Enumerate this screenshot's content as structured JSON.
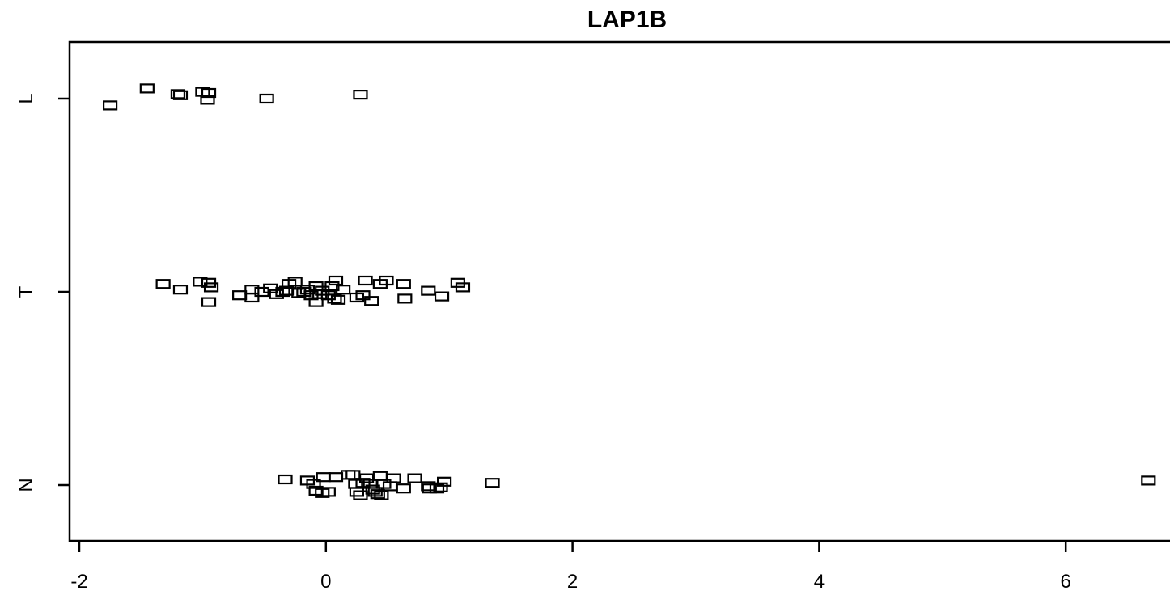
{
  "chart_data": {
    "type": "scatter",
    "title": "LAP1B",
    "xlabel": "",
    "ylabel": "",
    "xlim": [
      -2,
      6.8
    ],
    "x_ticks": [
      "-2",
      "0",
      "2",
      "4",
      "6"
    ],
    "x_tick_values": [
      -2,
      0,
      2,
      4,
      6
    ],
    "categories": [
      "L",
      "T",
      "N"
    ],
    "marker": "open-square",
    "grid": false,
    "legend": "none",
    "series": [
      {
        "category": "L",
        "points": [
          [
            -1.75,
            -0.06
          ],
          [
            -1.45,
            0.09
          ],
          [
            -1.2,
            0.04
          ],
          [
            -1.18,
            0.03
          ],
          [
            -1.0,
            0.06
          ],
          [
            -0.95,
            0.05
          ],
          [
            -0.96,
            -0.01
          ],
          [
            -0.48,
            0.0
          ],
          [
            0.28,
            0.035
          ]
        ]
      },
      {
        "category": "T",
        "points": [
          [
            -1.32,
            0.07
          ],
          [
            -1.18,
            0.02
          ],
          [
            -1.02,
            0.09
          ],
          [
            -0.95,
            0.08
          ],
          [
            -0.93,
            0.04
          ],
          [
            -0.95,
            -0.09
          ],
          [
            -0.7,
            -0.03
          ],
          [
            -0.6,
            0.02
          ],
          [
            -0.6,
            -0.05
          ],
          [
            -0.52,
            0.0
          ],
          [
            -0.45,
            0.03
          ],
          [
            -0.4,
            -0.02
          ],
          [
            -0.35,
            0.0
          ],
          [
            -0.32,
            0.01
          ],
          [
            -0.3,
            0.07
          ],
          [
            -0.25,
            0.09
          ],
          [
            -0.22,
            -0.01
          ],
          [
            -0.18,
            0.0
          ],
          [
            -0.15,
            0.02
          ],
          [
            -0.12,
            -0.03
          ],
          [
            -0.08,
            0.05
          ],
          [
            -0.05,
            -0.02
          ],
          [
            -0.03,
            0.01
          ],
          [
            -0.08,
            -0.09
          ],
          [
            0.02,
            -0.03
          ],
          [
            0.05,
            0.05
          ],
          [
            0.07,
            -0.06
          ],
          [
            0.1,
            -0.07
          ],
          [
            0.14,
            0.02
          ],
          [
            0.08,
            0.1
          ],
          [
            0.25,
            -0.05
          ],
          [
            0.3,
            -0.03
          ],
          [
            0.32,
            0.1
          ],
          [
            0.37,
            -0.08
          ],
          [
            0.44,
            0.07
          ],
          [
            0.49,
            0.1
          ],
          [
            0.63,
            0.07
          ],
          [
            0.64,
            -0.06
          ],
          [
            0.83,
            0.01
          ],
          [
            0.94,
            -0.04
          ],
          [
            1.07,
            0.08
          ],
          [
            1.11,
            0.04
          ]
        ]
      },
      {
        "category": "N",
        "points": [
          [
            -0.33,
            0.05
          ],
          [
            -0.15,
            0.04
          ],
          [
            -0.1,
            0.01
          ],
          [
            -0.08,
            -0.05
          ],
          [
            -0.02,
            0.07
          ],
          [
            -0.03,
            -0.07
          ],
          [
            0.02,
            -0.06
          ],
          [
            0.08,
            0.07
          ],
          [
            0.18,
            0.09
          ],
          [
            0.22,
            0.09
          ],
          [
            0.24,
            0.01
          ],
          [
            0.25,
            -0.06
          ],
          [
            0.28,
            -0.09
          ],
          [
            0.3,
            0.02
          ],
          [
            0.33,
            0.06
          ],
          [
            0.36,
            0.01
          ],
          [
            0.38,
            -0.04
          ],
          [
            0.4,
            -0.06
          ],
          [
            0.42,
            -0.08
          ],
          [
            0.45,
            -0.09
          ],
          [
            0.44,
            0.08
          ],
          [
            0.47,
            0.01
          ],
          [
            0.52,
            -0.01
          ],
          [
            0.55,
            0.06
          ],
          [
            0.63,
            -0.03
          ],
          [
            0.72,
            0.06
          ],
          [
            0.83,
            -0.01
          ],
          [
            0.84,
            -0.03
          ],
          [
            0.9,
            -0.03
          ],
          [
            0.93,
            -0.02
          ],
          [
            0.96,
            0.03
          ],
          [
            1.35,
            0.02
          ],
          [
            6.67,
            0.04
          ]
        ]
      }
    ]
  }
}
